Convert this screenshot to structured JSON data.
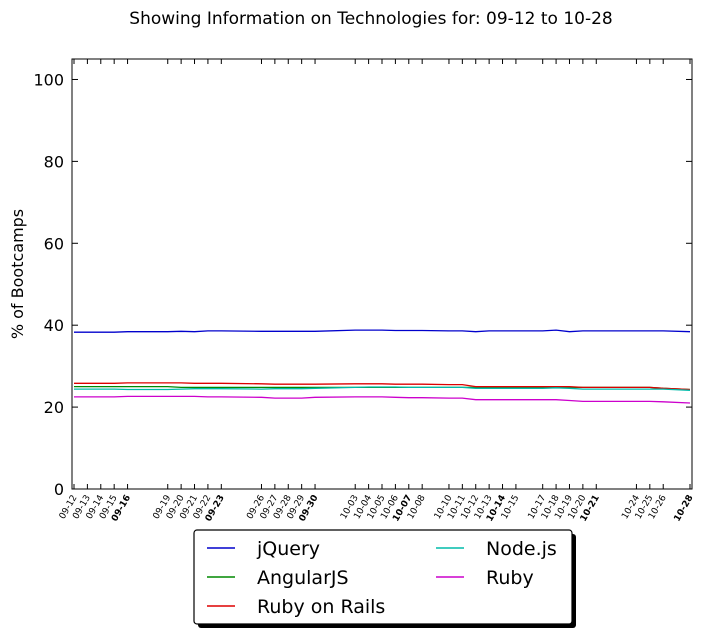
{
  "chart_data": {
    "type": "line",
    "title": "Showing Information on Technologies for: 09-12 to 10-28",
    "ylabel": "% of Bootcamps",
    "xlabel": "",
    "ylim": [
      0,
      105
    ],
    "yticks": [
      0,
      20,
      40,
      60,
      80,
      100
    ],
    "grid": false,
    "legend_position": "bottom-center",
    "x": [
      "09-12",
      "09-13",
      "09-14",
      "09-15",
      "09-16",
      "09-19",
      "09-20",
      "09-21",
      "09-22",
      "09-23",
      "09-26",
      "09-27",
      "09-28",
      "09-29",
      "09-30",
      "10-03",
      "10-04",
      "10-05",
      "10-06",
      "10-07",
      "10-08",
      "10-10",
      "10-11",
      "10-12",
      "10-13",
      "10-14",
      "10-15",
      "10-17",
      "10-18",
      "10-19",
      "10-20",
      "10-21",
      "10-24",
      "10-25",
      "10-26",
      "10-28"
    ],
    "x_day_offsets": [
      0,
      1,
      2,
      3,
      4,
      7,
      8,
      9,
      10,
      11,
      14,
      15,
      16,
      17,
      18,
      21,
      22,
      23,
      24,
      25,
      26,
      28,
      29,
      30,
      31,
      32,
      33,
      35,
      36,
      37,
      38,
      39,
      42,
      43,
      44,
      46
    ],
    "bold_ticks": [
      "09-16",
      "09-23",
      "09-30",
      "10-07",
      "10-14",
      "10-21",
      "10-28"
    ],
    "series": [
      {
        "name": "jQuery",
        "color": "#0000cc",
        "values": [
          38.3,
          38.3,
          38.3,
          38.3,
          38.4,
          38.4,
          38.5,
          38.4,
          38.6,
          38.6,
          38.5,
          38.5,
          38.5,
          38.5,
          38.5,
          38.8,
          38.8,
          38.8,
          38.7,
          38.7,
          38.7,
          38.6,
          38.6,
          38.4,
          38.6,
          38.6,
          38.6,
          38.6,
          38.8,
          38.4,
          38.6,
          38.6,
          38.6,
          38.6,
          38.6,
          38.4
        ]
      },
      {
        "name": "AngularJS",
        "color": "#008800",
        "values": [
          25.0,
          25.0,
          25.0,
          25.0,
          25.0,
          25.0,
          24.8,
          24.8,
          24.8,
          24.8,
          24.8,
          24.8,
          24.8,
          24.8,
          24.8,
          24.8,
          24.8,
          24.8,
          24.8,
          24.8,
          24.8,
          24.8,
          24.8,
          24.8,
          24.8,
          24.8,
          24.8,
          24.8,
          24.8,
          24.8,
          24.8,
          24.8,
          24.8,
          24.8,
          24.6,
          24.3
        ]
      },
      {
        "name": "Ruby on Rails",
        "color": "#dd0000",
        "values": [
          25.8,
          25.8,
          25.8,
          25.8,
          25.9,
          25.9,
          25.9,
          25.8,
          25.8,
          25.8,
          25.7,
          25.6,
          25.6,
          25.6,
          25.6,
          25.7,
          25.7,
          25.7,
          25.6,
          25.6,
          25.6,
          25.5,
          25.5,
          25.0,
          25.0,
          25.0,
          25.0,
          25.0,
          25.0,
          25.0,
          24.8,
          24.8,
          24.8,
          24.8,
          24.6,
          24.3
        ]
      },
      {
        "name": "Node.js",
        "color": "#00bbaa",
        "values": [
          24.4,
          24.4,
          24.4,
          24.4,
          24.3,
          24.3,
          24.4,
          24.5,
          24.5,
          24.5,
          24.4,
          24.5,
          24.5,
          24.5,
          24.6,
          24.8,
          24.9,
          24.9,
          24.9,
          24.8,
          24.8,
          24.8,
          24.8,
          24.6,
          24.6,
          24.6,
          24.6,
          24.6,
          24.7,
          24.6,
          24.4,
          24.4,
          24.4,
          24.4,
          24.4,
          24.1
        ]
      },
      {
        "name": "Ruby",
        "color": "#cc00cc",
        "values": [
          22.5,
          22.5,
          22.5,
          22.5,
          22.6,
          22.6,
          22.6,
          22.6,
          22.5,
          22.5,
          22.4,
          22.2,
          22.2,
          22.2,
          22.4,
          22.5,
          22.5,
          22.5,
          22.4,
          22.3,
          22.3,
          22.2,
          22.2,
          21.8,
          21.8,
          21.8,
          21.8,
          21.8,
          21.8,
          21.6,
          21.4,
          21.4,
          21.4,
          21.4,
          21.3,
          21.0
        ]
      }
    ]
  }
}
